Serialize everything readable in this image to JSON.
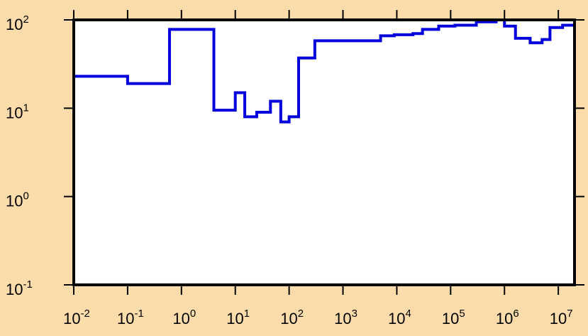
{
  "chart_data": {
    "type": "line",
    "style": "step",
    "title": "",
    "xlabel": "",
    "ylabel": "",
    "x_scale": "log",
    "y_scale": "log",
    "xlim": [
      0.01,
      20000000
    ],
    "ylim": [
      0.1,
      100
    ],
    "grid": false,
    "legend": "none",
    "colors": {
      "background": "#fcdcab",
      "plot_area": "#ffffff",
      "series": "#0000dd",
      "frame": "#000000"
    },
    "x_ticks": [
      {
        "base": "10",
        "exp": "-2",
        "value": 0.01
      },
      {
        "base": "10",
        "exp": "-1",
        "value": 0.1
      },
      {
        "base": "10",
        "exp": "0",
        "value": 1
      },
      {
        "base": "10",
        "exp": "1",
        "value": 10
      },
      {
        "base": "10",
        "exp": "2",
        "value": 100
      },
      {
        "base": "10",
        "exp": "3",
        "value": 1000
      },
      {
        "base": "10",
        "exp": "4",
        "value": 10000
      },
      {
        "base": "10",
        "exp": "5",
        "value": 100000
      },
      {
        "base": "10",
        "exp": "6",
        "value": 1000000
      },
      {
        "base": "10",
        "exp": "7",
        "value": 10000000
      }
    ],
    "y_ticks": [
      {
        "base": "10",
        "exp": "2",
        "value": 100
      },
      {
        "base": "10",
        "exp": "1",
        "value": 10
      },
      {
        "base": "10",
        "exp": "0",
        "value": 1
      },
      {
        "base": "10",
        "exp": "-1",
        "value": 0.1
      }
    ],
    "series": [
      {
        "bin_edges": [
          0.01,
          0.1,
          0.6,
          4,
          10,
          15,
          25,
          45,
          70,
          100,
          150,
          300,
          2000,
          5000,
          9000,
          20000,
          30000,
          60000,
          120000,
          300000,
          700000,
          1000000,
          1600000,
          3000000,
          5000000,
          7000000,
          12000000,
          20000000
        ],
        "values": [
          23,
          19,
          78,
          9.5,
          15,
          8,
          9,
          12,
          7,
          8,
          37,
          58,
          58,
          66,
          68,
          70,
          78,
          85,
          87,
          95,
          100,
          85,
          62,
          55,
          60,
          82,
          87
        ]
      }
    ]
  }
}
